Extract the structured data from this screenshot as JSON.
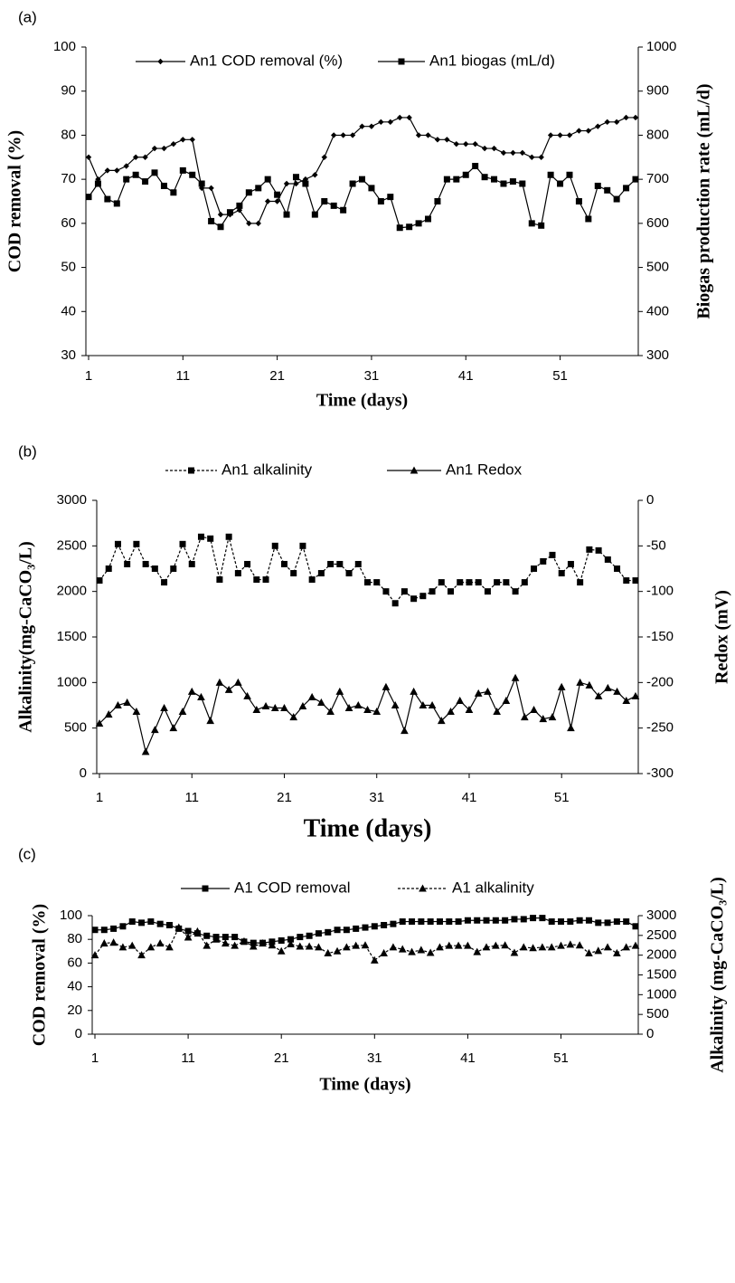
{
  "chart_data": [
    {
      "type": "line",
      "label": "(a)",
      "xlabel": "Time (days)",
      "ylabel": "COD removal (%)",
      "y2label": "Biogas production  rate (mL/d)",
      "x": [
        1,
        2,
        3,
        4,
        5,
        6,
        7,
        8,
        9,
        10,
        11,
        12,
        13,
        14,
        15,
        16,
        17,
        18,
        19,
        20,
        21,
        22,
        23,
        24,
        25,
        26,
        27,
        28,
        29,
        30,
        31,
        32,
        33,
        34,
        35,
        36,
        37,
        38,
        39,
        40,
        41,
        42,
        43,
        44,
        45,
        46,
        47,
        48,
        49,
        50,
        51,
        52,
        53,
        54,
        55,
        56,
        57,
        58,
        59
      ],
      "xlim": [
        1,
        59
      ],
      "xticks": [
        1,
        11,
        21,
        31,
        41,
        51
      ],
      "ylim": [
        30,
        100
      ],
      "yticks": [
        30,
        40,
        50,
        60,
        70,
        80,
        90,
        100
      ],
      "y2lim": [
        300,
        1000
      ],
      "y2ticks": [
        300,
        400,
        500,
        600,
        700,
        800,
        900,
        1000
      ],
      "series": [
        {
          "name": "An1 COD removal (%)",
          "color": "#000000",
          "marker": "diamond",
          "dash": "solid",
          "values": [
            75,
            70,
            72,
            72,
            73,
            75,
            75,
            77,
            77,
            78,
            79,
            79,
            68,
            68,
            62,
            62,
            63,
            60,
            60,
            65,
            65,
            69,
            69,
            70,
            71,
            75,
            80,
            80,
            80,
            82,
            82,
            83,
            83,
            84,
            84,
            80,
            80,
            79,
            79,
            78,
            78,
            78,
            77,
            77,
            76,
            76,
            76,
            75,
            75,
            80,
            80,
            80,
            81,
            81,
            82,
            83,
            83,
            84,
            84
          ]
        },
        {
          "name": "An1 biogas (mL/d)",
          "color": "#000000",
          "marker": "square",
          "dash": "solid",
          "axis": "y2",
          "values": [
            660,
            690,
            655,
            645,
            700,
            710,
            695,
            715,
            685,
            670,
            720,
            710,
            690,
            605,
            592,
            625,
            640,
            670,
            680,
            700,
            665,
            620,
            705,
            690,
            620,
            650,
            640,
            630,
            690,
            700,
            680,
            650,
            660,
            590,
            592,
            600,
            610,
            650,
            700,
            700,
            710,
            730,
            705,
            700,
            690,
            695,
            690,
            600,
            595,
            710,
            690,
            710,
            650,
            610,
            685,
            675,
            655,
            680,
            700
          ]
        }
      ]
    },
    {
      "type": "line",
      "label": "(b)",
      "xlabel": "Time (days)",
      "ylabel": "Alkalinity(mg-CaCO₃/L)",
      "y2label": "Redox (mV)",
      "x": [
        1,
        2,
        3,
        4,
        5,
        6,
        7,
        8,
        9,
        10,
        11,
        12,
        13,
        14,
        15,
        16,
        17,
        18,
        19,
        20,
        21,
        22,
        23,
        24,
        25,
        26,
        27,
        28,
        29,
        30,
        31,
        32,
        33,
        34,
        35,
        36,
        37,
        38,
        39,
        40,
        41,
        42,
        43,
        44,
        45,
        46,
        47,
        48,
        49,
        50,
        51,
        52,
        53,
        54,
        55,
        56,
        57,
        58,
        59
      ],
      "xlim": [
        1,
        59
      ],
      "xticks": [
        1,
        11,
        21,
        31,
        41,
        51
      ],
      "ylim": [
        0,
        3000
      ],
      "yticks": [
        0,
        500,
        1000,
        1500,
        2000,
        2500,
        3000
      ],
      "y2lim": [
        -300,
        0
      ],
      "y2ticks": [
        -300,
        -250,
        -200,
        -150,
        -100,
        -50,
        0
      ],
      "series": [
        {
          "name": "An1 alkalinity",
          "color": "#000000",
          "marker": "square",
          "dash": "dashed",
          "values": [
            2120,
            2250,
            2520,
            2300,
            2520,
            2300,
            2250,
            2100,
            2250,
            2520,
            2300,
            2600,
            2580,
            2130,
            2600,
            2200,
            2300,
            2130,
            2130,
            2500,
            2300,
            2200,
            2500,
            2130,
            2200,
            2300,
            2300,
            2200,
            2300,
            2100,
            2100,
            2000,
            1870,
            2000,
            1920,
            1950,
            2000,
            2100,
            2000,
            2100,
            2100,
            2100,
            2000,
            2100,
            2100,
            2000,
            2100,
            2250,
            2330,
            2400,
            2200,
            2300,
            2100,
            2460,
            2450,
            2350,
            2250,
            2120,
            2120
          ]
        },
        {
          "name": "An1 Redox",
          "color": "#000000",
          "marker": "triangle",
          "dash": "solid",
          "axis": "y2",
          "values": [
            -245,
            -235,
            -225,
            -222,
            -232,
            -276,
            -252,
            -228,
            -250,
            -232,
            -210,
            -216,
            -242,
            -200,
            -208,
            -200,
            -215,
            -230,
            -226,
            -228,
            -228,
            -238,
            -226,
            -216,
            -222,
            -232,
            -210,
            -228,
            -225,
            -230,
            -232,
            -205,
            -225,
            -253,
            -210,
            -225,
            -225,
            -242,
            -232,
            -220,
            -230,
            -212,
            -210,
            -232,
            -220,
            -195,
            -238,
            -230,
            -240,
            -238,
            -205,
            -250,
            -200,
            -203,
            -215,
            -206,
            -210,
            -220,
            -215
          ]
        }
      ]
    },
    {
      "type": "line",
      "label": "(c)",
      "xlabel": "Time (days)",
      "ylabel": "COD removal (%)",
      "y2label": "Alkalinity  (mg-CaCO₃/L)",
      "x": [
        1,
        2,
        3,
        4,
        5,
        6,
        7,
        8,
        9,
        10,
        11,
        12,
        13,
        14,
        15,
        16,
        17,
        18,
        19,
        20,
        21,
        22,
        23,
        24,
        25,
        26,
        27,
        28,
        29,
        30,
        31,
        32,
        33,
        34,
        35,
        36,
        37,
        38,
        39,
        40,
        41,
        42,
        43,
        44,
        45,
        46,
        47,
        48,
        49,
        50,
        51,
        52,
        53,
        54,
        55,
        56,
        57,
        58,
        59
      ],
      "xlim": [
        1,
        59
      ],
      "xticks": [
        1,
        11,
        21,
        31,
        41,
        51
      ],
      "ylim": [
        0,
        100
      ],
      "yticks": [
        0,
        20,
        40,
        60,
        80,
        100
      ],
      "y2lim": [
        0,
        3000
      ],
      "y2ticks": [
        0,
        500,
        1000,
        1500,
        2000,
        2500,
        3000
      ],
      "series": [
        {
          "name": "A1 COD removal",
          "color": "#000000",
          "marker": "square",
          "dash": "solid",
          "values": [
            88,
            88,
            89,
            91,
            95,
            94,
            95,
            93,
            92,
            89,
            87,
            85,
            83,
            82,
            82,
            82,
            78,
            77,
            77,
            78,
            79,
            80,
            82,
            83,
            85,
            86,
            88,
            88,
            89,
            90,
            91,
            92,
            93,
            95,
            95,
            95,
            95,
            95,
            95,
            95,
            96,
            96,
            96,
            96,
            96,
            97,
            97,
            98,
            98,
            95,
            95,
            95,
            96,
            96,
            94,
            94,
            95,
            95,
            91
          ]
        },
        {
          "name": "A1 alkalinity",
          "color": "#000000",
          "marker": "triangle",
          "dash": "dashed",
          "axis": "y2",
          "values": [
            2000,
            2300,
            2320,
            2200,
            2240,
            2000,
            2200,
            2300,
            2200,
            2700,
            2450,
            2600,
            2240,
            2400,
            2300,
            2240,
            2350,
            2220,
            2300,
            2250,
            2100,
            2280,
            2220,
            2220,
            2200,
            2050,
            2100,
            2200,
            2240,
            2250,
            1870,
            2050,
            2200,
            2150,
            2080,
            2130,
            2060,
            2200,
            2240,
            2240,
            2240,
            2080,
            2200,
            2240,
            2250,
            2060,
            2200,
            2180,
            2200,
            2200,
            2240,
            2270,
            2250,
            2050,
            2110,
            2200,
            2050,
            2200,
            2240
          ]
        }
      ]
    }
  ]
}
